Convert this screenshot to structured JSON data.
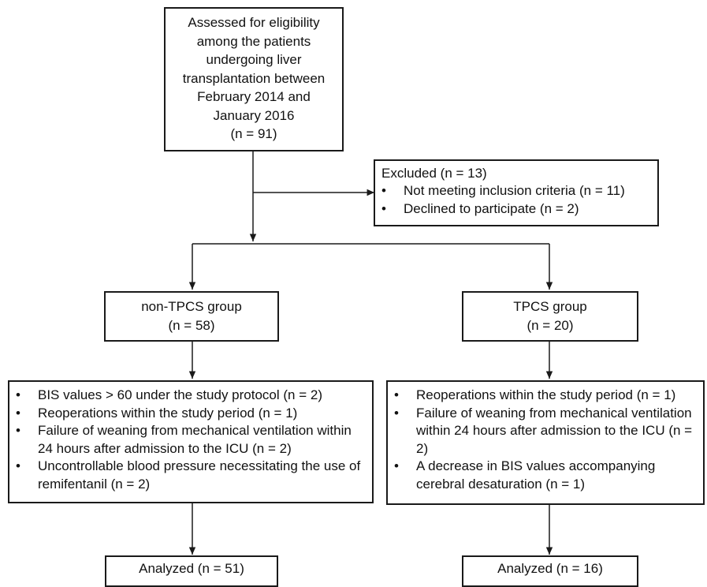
{
  "enrollment": {
    "lines": [
      "Assessed for eligibility",
      "among the patients",
      "undergoing liver",
      "transplantation between",
      "February 2014 and",
      "January 2016",
      "(n = 91)"
    ]
  },
  "excluded": {
    "title": "Excluded (n = 13)",
    "items": [
      "Not meeting inclusion criteria (n = 11)",
      "Declined to participate (n = 2)"
    ]
  },
  "groups": {
    "non_tpcs": {
      "name": "non-TPCS group",
      "count": "(n = 58)"
    },
    "tpcs": {
      "name": "TPCS group",
      "count": "(n = 20)"
    }
  },
  "non_tpcs_exclusions": [
    "BIS values > 60 under the study protocol (n = 2)",
    "Reoperations within the study period (n = 1)",
    "Failure of weaning from mechanical ventilation within 24 hours after admission to the ICU (n = 2)",
    "Uncontrollable blood pressure necessitating the use of remifentanil (n = 2)"
  ],
  "tpcs_exclusions": [
    "Reoperations within the study period (n = 1)",
    "Failure of weaning from mechanical ventilation within 24 hours after admission to the ICU (n = 2)",
    "A decrease in BIS values accompanying cerebral desaturation (n = 1)"
  ],
  "analyzed": {
    "non_tpcs": "Analyzed (n = 51)",
    "tpcs": "Analyzed (n = 16)"
  }
}
